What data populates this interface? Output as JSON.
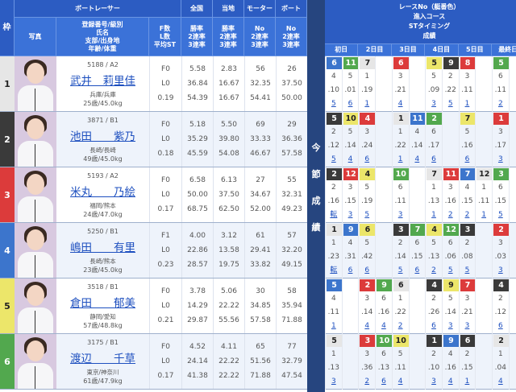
{
  "header": {
    "waku": "枠",
    "boat_racer": "ボートレーサー",
    "zenkoku": "全国",
    "touchi": "当地",
    "motor": "モーター",
    "boat": "ボート",
    "photo": "写真",
    "racer_info": "登録番号/級別\n氏名\n支部/出身地\n年齢/体重",
    "fl": "F数\nL数\n平均ST",
    "rate_cols": "勝率\n2連率\n3連率",
    "no_cols": "No\n2連率\n3連率",
    "right_title": "レースNo（艇番色）\n進入コース\nSTタイミング\n成績",
    "days": [
      "初日",
      "2日目",
      "3日目",
      "4日目",
      "5日目",
      "最終日"
    ]
  },
  "divider_label": [
    "今",
    "節",
    "成",
    "績"
  ],
  "boat_colors": {
    "1": "#e6e6e6",
    "2": "#3a3a3a",
    "3": "#dc3b3b",
    "4": "#3c75cc",
    "5": "#ece66a",
    "6": "#52a84e"
  },
  "racers": [
    {
      "waku": "1",
      "reg": "5188 / A2",
      "name": "武井　莉里佳",
      "branch": "兵庫/兵庫",
      "age": "25歳/45.0kg",
      "fl": [
        "F0",
        "L0",
        "0.19"
      ],
      "zenkoku": [
        "5.58",
        "36.84",
        "54.39"
      ],
      "touchi": [
        "2.83",
        "16.67",
        "16.67"
      ],
      "motor": [
        "56",
        "32.35",
        "54.41"
      ],
      "boat": [
        "26",
        "37.50",
        "50.00"
      ],
      "days": [
        [
          "6",
          4,
          "4",
          ".10",
          "5"
        ],
        [
          "11",
          6,
          "5",
          ".01",
          "6"
        ],
        [
          "7",
          1,
          "1",
          ".19",
          "1"
        ],
        null,
        [
          "6",
          3,
          "3",
          ".21",
          "4"
        ],
        null,
        [
          "5",
          5,
          "5",
          ".09",
          "3"
        ],
        [
          "9",
          2,
          "2",
          ".22",
          "5"
        ],
        [
          "8",
          3,
          "3",
          ".11",
          "1"
        ],
        null,
        [
          "5",
          6,
          "6",
          ".11",
          "2"
        ],
        null
      ]
    },
    {
      "waku": "2",
      "reg": "3871 / B1",
      "name": "池田　　紫乃",
      "branch": "長崎/長崎",
      "age": "49歳/45.0kg",
      "fl": [
        "F0",
        "L0",
        "0.18"
      ],
      "zenkoku": [
        "5.18",
        "35.29",
        "45.59"
      ],
      "touchi": [
        "5.50",
        "39.80",
        "54.08"
      ],
      "motor": [
        "69",
        "33.33",
        "46.67"
      ],
      "boat": [
        "29",
        "36.36",
        "57.58"
      ],
      "days": [
        [
          "5",
          2,
          "2",
          ".12",
          "5"
        ],
        [
          "10",
          5,
          "5",
          ".14",
          "4"
        ],
        [
          "4",
          3,
          "3",
          ".24",
          "6"
        ],
        null,
        [
          "1",
          1,
          "1",
          ".22",
          "1"
        ],
        [
          "11",
          4,
          "4",
          ".14",
          "4"
        ],
        [
          "2",
          6,
          "6",
          ".17",
          "6"
        ],
        null,
        [
          "7",
          5,
          "5",
          ".16",
          "6"
        ],
        null,
        [
          "1",
          3,
          "3",
          ".17",
          "3"
        ],
        null
      ]
    },
    {
      "waku": "3",
      "reg": "5193 / A2",
      "name": "米丸　　乃絵",
      "branch": "福岡/熊本",
      "age": "24歳/47.0kg",
      "fl": [
        "F0",
        "L0",
        "0.17"
      ],
      "zenkoku": [
        "6.58",
        "50.00",
        "68.75"
      ],
      "touchi": [
        "6.13",
        "37.50",
        "62.50"
      ],
      "motor": [
        "27",
        "34.67",
        "52.00"
      ],
      "boat": [
        "55",
        "32.31",
        "49.23"
      ],
      "days": [
        [
          "2",
          2,
          "2",
          ".16",
          "転"
        ],
        [
          "12",
          3,
          "3",
          ".15",
          "3"
        ],
        [
          "4",
          5,
          "5",
          ".19",
          "5"
        ],
        null,
        [
          "10",
          6,
          "6",
          ".11",
          "3"
        ],
        null,
        [
          "7",
          1,
          "1",
          ".13",
          "1"
        ],
        [
          "11",
          3,
          "3",
          ".16",
          "2"
        ],
        [
          "7",
          4,
          "4",
          ".15",
          "2"
        ],
        [
          "12",
          1,
          "1",
          ".11",
          "1"
        ],
        [
          "3",
          6,
          "6",
          ".15",
          "5"
        ],
        null
      ]
    },
    {
      "waku": "4",
      "reg": "5250 / B1",
      "name": "嶋田　　有里",
      "branch": "長崎/熊本",
      "age": "23歳/45.0kg",
      "fl": [
        "F1",
        "L0",
        "0.23"
      ],
      "zenkoku": [
        "4.00",
        "22.86",
        "28.57"
      ],
      "touchi": [
        "3.12",
        "13.58",
        "19.75"
      ],
      "motor": [
        "61",
        "29.41",
        "33.82"
      ],
      "boat": [
        "57",
        "32.20",
        "49.15"
      ],
      "days": [
        [
          "1",
          1,
          "1",
          ".23",
          "転"
        ],
        [
          "9",
          4,
          "4",
          ".31",
          "6"
        ],
        [
          "6",
          5,
          "5",
          ".42",
          "6"
        ],
        null,
        [
          "3",
          2,
          "2",
          ".14",
          "5"
        ],
        [
          "7",
          6,
          "6",
          ".15",
          "6"
        ],
        [
          "4",
          5,
          "5",
          ".13",
          "2"
        ],
        [
          "12",
          6,
          "6",
          ".06",
          "5"
        ],
        [
          "3",
          2,
          "2",
          ".08",
          "5"
        ],
        null,
        [
          "2",
          3,
          "3",
          ".03",
          "3"
        ],
        null
      ]
    },
    {
      "waku": "5",
      "reg": "3518 / B1",
      "name": "倉田　　郁美",
      "branch": "静岡/愛知",
      "age": "57歳/48.8kg",
      "fl": [
        "F0",
        "L0",
        "0.21"
      ],
      "zenkoku": [
        "3.78",
        "14.29",
        "29.87"
      ],
      "touchi": [
        "5.06",
        "22.22",
        "55.56"
      ],
      "motor": [
        "30",
        "34.85",
        "57.58"
      ],
      "boat": [
        "58",
        "35.94",
        "71.88"
      ],
      "days": [
        [
          "5",
          4,
          "4",
          ".11",
          "1"
        ],
        null,
        [
          "2",
          3,
          "3",
          ".14",
          "4"
        ],
        [
          "9",
          6,
          "6",
          ".16",
          "4"
        ],
        [
          "6",
          1,
          "1",
          ".22",
          "2"
        ],
        null,
        [
          "4",
          2,
          "2",
          ".26",
          "6"
        ],
        [
          "9",
          5,
          "5",
          ".14",
          "3"
        ],
        [
          "7",
          3,
          "3",
          ".21",
          "3"
        ],
        null,
        [
          "4",
          2,
          "2",
          ".12",
          "6"
        ],
        null
      ]
    },
    {
      "waku": "6",
      "reg": "3175 / B1",
      "name": "渡辺　　千草",
      "branch": "東京/神奈川",
      "age": "61歳/47.9kg",
      "fl": [
        "F0",
        "L0",
        "0.17"
      ],
      "zenkoku": [
        "4.52",
        "24.14",
        "41.38"
      ],
      "touchi": [
        "4.11",
        "22.22",
        "22.22"
      ],
      "motor": [
        "65",
        "51.56",
        "71.88"
      ],
      "boat": [
        "77",
        "32.79",
        "47.54"
      ],
      "days": [
        [
          "5",
          1,
          "1",
          ".13",
          "3"
        ],
        null,
        [
          "3",
          3,
          "3",
          ".36",
          "2"
        ],
        [
          "10",
          6,
          "6",
          ".13",
          "6"
        ],
        [
          "10",
          5,
          "5",
          ".11",
          "4"
        ],
        null,
        [
          "1",
          2,
          "2",
          ".10",
          "3"
        ],
        [
          "9",
          4,
          "4",
          ".16",
          "4"
        ],
        [
          "6",
          2,
          "2",
          ".15",
          "1"
        ],
        null,
        [
          "2",
          1,
          "1",
          ".04",
          "4"
        ],
        null
      ]
    }
  ]
}
